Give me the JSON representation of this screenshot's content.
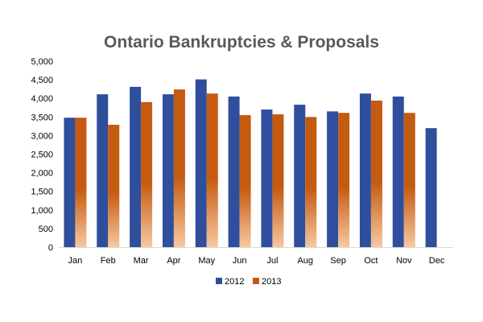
{
  "chart_data": {
    "type": "bar",
    "title": "Ontario  Bankruptcies  &  Proposals",
    "xlabel": "",
    "ylabel": "",
    "categories": [
      "Jan",
      "Feb",
      "Mar",
      "Apr",
      "May",
      "Jun",
      "Jul",
      "Aug",
      "Sep",
      "Oct",
      "Nov",
      "Dec"
    ],
    "y_ticks": [
      "0",
      "500",
      "1,000",
      "1,500",
      "2,000",
      "2,500",
      "3,000",
      "3,500",
      "4,000",
      "4,500",
      "5,000"
    ],
    "ylim": [
      0,
      5000
    ],
    "grid": false,
    "legend_position": "bottom",
    "series": [
      {
        "name": "2012",
        "color": "#2f4f9c",
        "values": [
          3480,
          4110,
          4310,
          4110,
          4510,
          4050,
          3700,
          3830,
          3650,
          4130,
          4050,
          3200
        ]
      },
      {
        "name": "2013",
        "color": "#c55a11",
        "gradient_end": "#f7c8a0",
        "values": [
          3480,
          3290,
          3900,
          4240,
          4130,
          3550,
          3570,
          3500,
          3610,
          3940,
          3610,
          null
        ]
      }
    ]
  }
}
